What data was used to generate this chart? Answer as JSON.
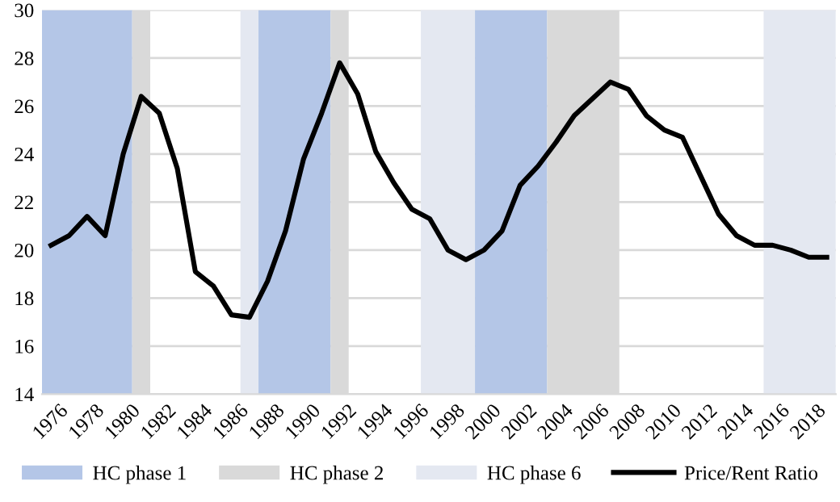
{
  "chart_data": {
    "type": "line",
    "x": [
      1976,
      1977,
      1978,
      1979,
      1980,
      1981,
      1982,
      1983,
      1984,
      1985,
      1986,
      1987,
      1988,
      1989,
      1990,
      1991,
      1992,
      1993,
      1994,
      1995,
      1996,
      1997,
      1998,
      1999,
      2000,
      2001,
      2002,
      2003,
      2004,
      2005,
      2006,
      2007,
      2008,
      2009,
      2010,
      2011,
      2012,
      2013,
      2014,
      2015,
      2016,
      2017,
      2018,
      2019
    ],
    "series": [
      {
        "name": "Price/Rent Ratio",
        "color": "#000000",
        "values": [
          20.2,
          20.6,
          21.4,
          20.6,
          24.0,
          26.4,
          25.7,
          23.4,
          19.1,
          18.5,
          17.3,
          17.2,
          18.7,
          20.8,
          23.8,
          25.7,
          27.8,
          26.5,
          24.1,
          22.8,
          21.7,
          21.3,
          20.0,
          19.6,
          20.0,
          20.8,
          22.7,
          23.5,
          24.5,
          25.6,
          26.3,
          27.0,
          26.7,
          25.6,
          25.0,
          24.7,
          23.1,
          21.5,
          20.6,
          20.2,
          20.2,
          20.0,
          19.7,
          19.7
        ]
      }
    ],
    "bands": [
      {
        "axis": "x",
        "from": 1975.5,
        "to": 1980.5,
        "label": "HC phase 1",
        "color": "#b4c6e7"
      },
      {
        "axis": "x",
        "from": 1980.5,
        "to": 1981.5,
        "label": "HC phase 2",
        "color": "#d9d9d9"
      },
      {
        "axis": "x",
        "from": 1986.5,
        "to": 1987.5,
        "label": "HC phase 6",
        "color": "#e4e8f1"
      },
      {
        "axis": "x",
        "from": 1987.5,
        "to": 1991.5,
        "color": "#b4c6e7"
      },
      {
        "axis": "x",
        "from": 1991.5,
        "to": 1992.5,
        "color": "#d9d9d9"
      },
      {
        "axis": "x",
        "from": 1996.5,
        "to": 1999.5,
        "color": "#e4e8f1"
      },
      {
        "axis": "x",
        "from": 1999.5,
        "to": 2003.5,
        "color": "#b4c6e7"
      },
      {
        "axis": "x",
        "from": 2003.5,
        "to": 2007.5,
        "color": "#d9d9d9"
      },
      {
        "axis": "x",
        "from": 2015.5,
        "to": 2019.5,
        "color": "#e4e8f1"
      }
    ],
    "xlim": [
      1975.5,
      2019.5
    ],
    "xticks": [
      1976,
      1978,
      1980,
      1982,
      1984,
      1986,
      1988,
      1990,
      1992,
      1994,
      1996,
      1998,
      2000,
      2002,
      2004,
      2006,
      2008,
      2010,
      2012,
      2014,
      2016,
      2018
    ],
    "ylim": [
      14,
      30
    ],
    "yticks": [
      14,
      16,
      18,
      20,
      22,
      24,
      26,
      28,
      30
    ],
    "grid": "y",
    "legend": "bottom",
    "marker": "none",
    "line_style": "solid"
  }
}
